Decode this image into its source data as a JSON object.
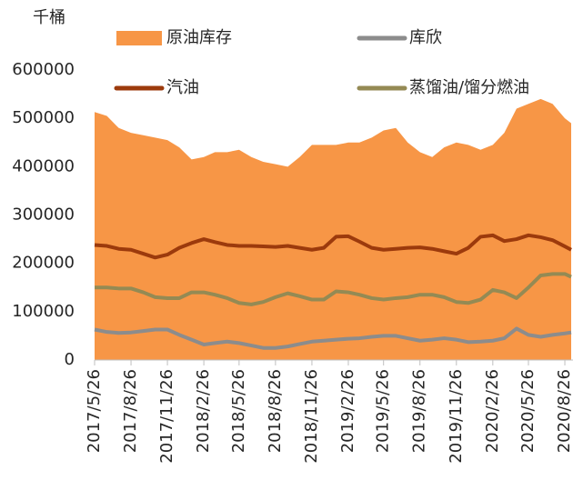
{
  "chart_data": {
    "type": "line",
    "y_unit": "千桶",
    "x": [
      "2017/5/26",
      "2017/6/26",
      "2017/7/26",
      "2017/8/26",
      "2017/9/26",
      "2017/10/26",
      "2017/11/26",
      "2017/12/26",
      "2018/1/26",
      "2018/2/26",
      "2018/3/26",
      "2018/4/26",
      "2018/5/26",
      "2018/6/26",
      "2018/7/26",
      "2018/8/26",
      "2018/9/26",
      "2018/10/26",
      "2018/11/26",
      "2018/12/26",
      "2019/1/26",
      "2019/2/26",
      "2019/3/26",
      "2019/4/26",
      "2019/5/26",
      "2019/6/26",
      "2019/7/26",
      "2019/8/26",
      "2019/9/26",
      "2019/10/26",
      "2019/11/26",
      "2019/12/26",
      "2020/1/26",
      "2020/2/26",
      "2020/3/26",
      "2020/4/26",
      "2020/5/26",
      "2020/6/26",
      "2020/7/26",
      "2020/8/26",
      "2020/9/11"
    ],
    "xlim": [
      "2017/5/26",
      "2020/9/11"
    ],
    "xticks": [
      "2017/5/26",
      "2017/8/26",
      "2017/11/26",
      "2018/2/26",
      "2018/5/26",
      "2018/8/26",
      "2018/11/26",
      "2019/2/26",
      "2019/5/26",
      "2019/8/26",
      "2019/11/26",
      "2020/2/26",
      "2020/5/26",
      "2020/8/26"
    ],
    "ylim": [
      0,
      600000
    ],
    "yticks": [
      0,
      100000,
      200000,
      300000,
      400000,
      500000,
      600000
    ],
    "series": [
      {
        "name": "原油库存",
        "style": "area",
        "color": "#f79646",
        "values": [
          513000,
          505000,
          480000,
          470000,
          465000,
          460000,
          455000,
          440000,
          415000,
          420000,
          430000,
          430000,
          435000,
          420000,
          410000,
          405000,
          400000,
          420000,
          445000,
          445000,
          445000,
          450000,
          450000,
          460000,
          475000,
          480000,
          450000,
          430000,
          420000,
          440000,
          450000,
          445000,
          435000,
          445000,
          470000,
          520000,
          530000,
          540000,
          530000,
          500000,
          490000
        ]
      },
      {
        "name": "库欣",
        "style": "line",
        "color": "#8c8c8c",
        "values": [
          63000,
          58000,
          56000,
          57000,
          60000,
          63000,
          63000,
          52000,
          42000,
          32000,
          35000,
          38000,
          35000,
          30000,
          25000,
          25000,
          28000,
          33000,
          38000,
          40000,
          42000,
          44000,
          45000,
          48000,
          50000,
          50000,
          45000,
          40000,
          42000,
          45000,
          42000,
          37000,
          38000,
          40000,
          45000,
          65000,
          52000,
          48000,
          52000,
          55000,
          57000
        ]
      },
      {
        "name": "汽油",
        "style": "line",
        "color": "#9c3a0c",
        "values": [
          238000,
          236000,
          230000,
          228000,
          220000,
          212000,
          218000,
          232000,
          242000,
          250000,
          244000,
          238000,
          236000,
          236000,
          235000,
          234000,
          236000,
          232000,
          228000,
          232000,
          255000,
          256000,
          245000,
          232000,
          228000,
          230000,
          232000,
          233000,
          230000,
          225000,
          220000,
          232000,
          255000,
          258000,
          246000,
          250000,
          258000,
          254000,
          248000,
          235000,
          228000
        ]
      },
      {
        "name": "蒸馏油/馏分燃油",
        "style": "line",
        "color": "#948a54",
        "values": [
          150000,
          150000,
          148000,
          148000,
          140000,
          130000,
          128000,
          128000,
          140000,
          140000,
          135000,
          128000,
          118000,
          115000,
          120000,
          130000,
          138000,
          132000,
          125000,
          125000,
          142000,
          140000,
          135000,
          128000,
          125000,
          128000,
          130000,
          135000,
          135000,
          130000,
          120000,
          118000,
          125000,
          145000,
          140000,
          128000,
          150000,
          175000,
          178000,
          178000,
          172000
        ]
      }
    ]
  }
}
